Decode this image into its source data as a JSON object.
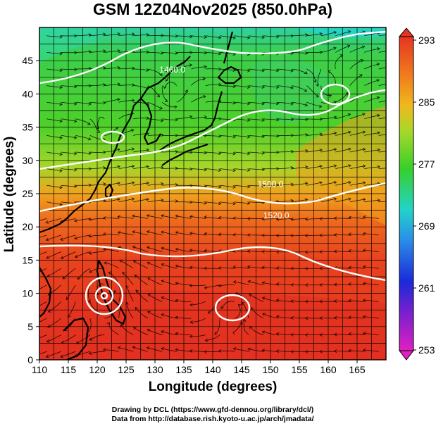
{
  "figure": {
    "title": "GSM 12Z04Nov2025 (850.0hPa)",
    "xlabel": "Longitude (degrees)",
    "ylabel": "Latitude  (degrees)",
    "credit_lines": [
      "Drawing by DCL (https://www.gfd-dennou.org/library/dcl/)",
      "Data from http://database.rish.kyoto-u.ac.jp/arch/jmadata/"
    ]
  },
  "map": {
    "lon_range": [
      110,
      170
    ],
    "lat_range": [
      0,
      50
    ],
    "x_ticks": [
      "110",
      "115",
      "120",
      "125",
      "130",
      "135",
      "140",
      "145",
      "150",
      "155",
      "160",
      "165"
    ],
    "y_ticks": [
      "0",
      "5",
      "10",
      "15",
      "20",
      "25",
      "30",
      "35",
      "40",
      "45"
    ],
    "grid": true,
    "contour_labels": [
      {
        "text": "1460.0",
        "lon": 133,
        "lat": 43.2
      },
      {
        "text": "1500.0",
        "lon": 150,
        "lat": 26.0
      },
      {
        "text": "1520.0",
        "lon": 151,
        "lat": 21.3
      }
    ]
  },
  "colorbar": {
    "labels": [
      "293",
      "285",
      "277",
      "269",
      "261",
      "253"
    ],
    "range": [
      253,
      293
    ]
  },
  "colors": {
    "warm": "#e83c1e",
    "orange": "#f08a1e",
    "green": "#3ecf2a",
    "cyan": "#22d4c8",
    "blue": "#1a3ae0",
    "magenta": "#e020c0"
  }
}
